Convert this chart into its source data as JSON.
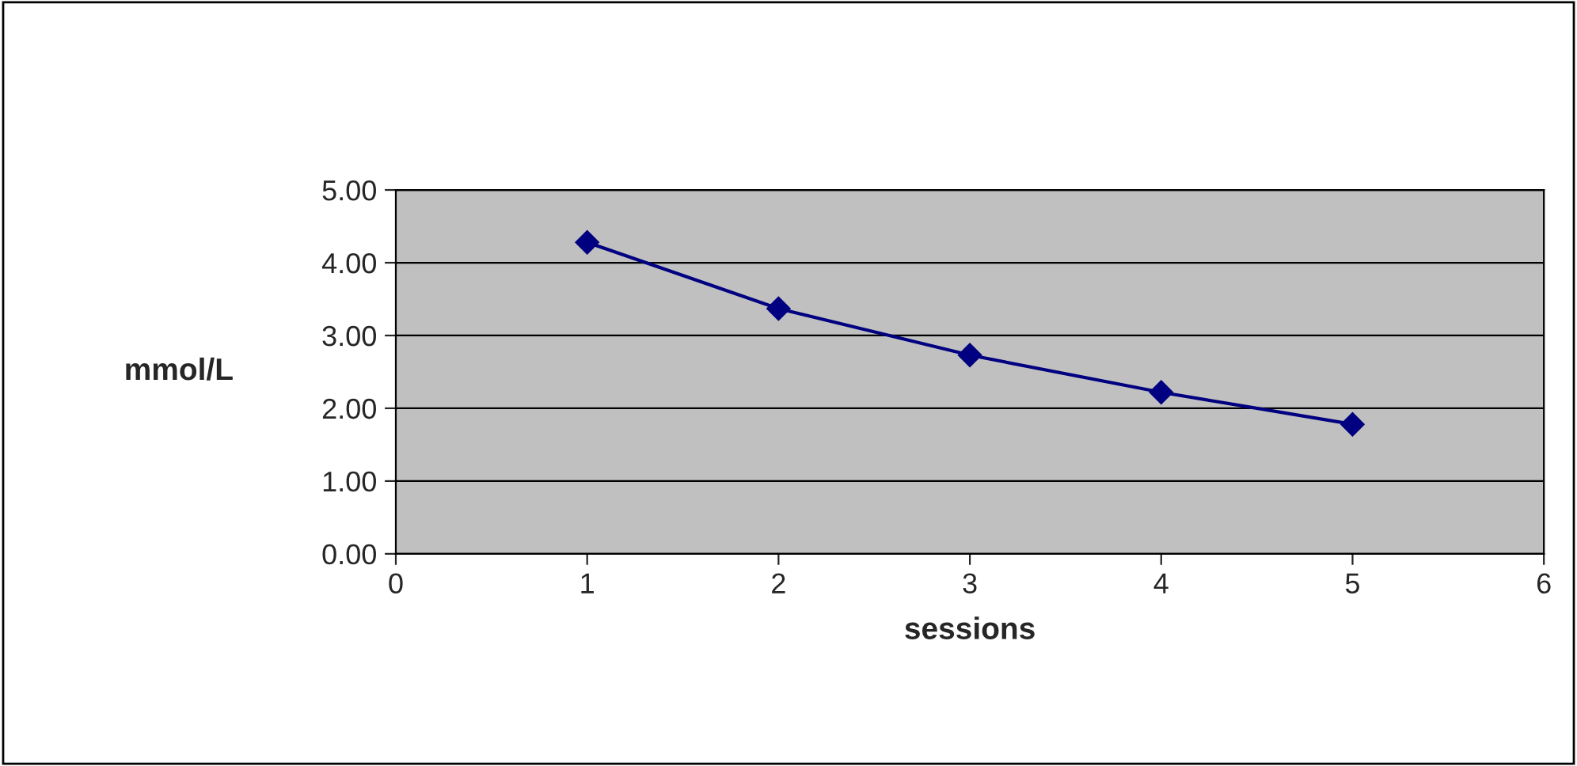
{
  "chart_data": {
    "type": "line",
    "xlabel": "sessions",
    "ylabel": "mmol/L",
    "x": [
      1,
      2,
      3,
      4,
      5
    ],
    "series": [
      {
        "color": "#000080",
        "values": [
          4.28,
          3.37,
          2.73,
          2.22,
          1.78
        ]
      }
    ],
    "xlim": [
      0,
      6
    ],
    "xticks": [
      0,
      1,
      2,
      3,
      4,
      5,
      6
    ],
    "ylim": [
      0,
      5
    ],
    "yticks": [
      {
        "value": 0,
        "label": "0.00"
      },
      {
        "value": 1,
        "label": "1.00"
      },
      {
        "value": 2,
        "label": "2.00"
      },
      {
        "value": 3,
        "label": "3.00"
      },
      {
        "value": 4,
        "label": "4.00"
      },
      {
        "value": 5,
        "label": "5.00"
      }
    ],
    "grid": "y",
    "marker": "diamond",
    "line_style": "solid",
    "legend": false
  }
}
